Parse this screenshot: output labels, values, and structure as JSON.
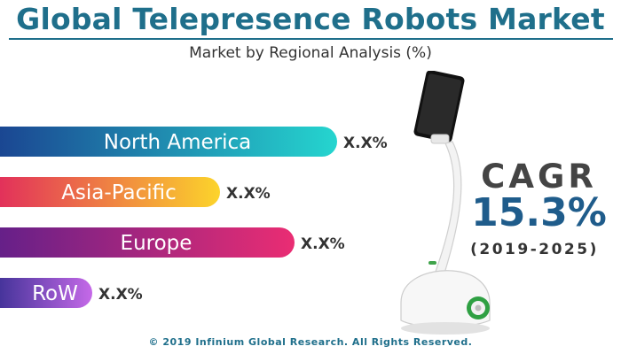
{
  "header": {
    "title": "Global Telepresence Robots Market",
    "subtitle": "Market by Regional Analysis (%)"
  },
  "chart_data": {
    "type": "bar",
    "orientation": "horizontal",
    "title": "Global Telepresence Robots Market",
    "subtitle": "Market by Regional Analysis (%)",
    "categories": [
      "North America",
      "Asia-Pacific",
      "Europe",
      "RoW"
    ],
    "value_labels": [
      "X.X%",
      "X.X%",
      "X.X%",
      "X.X%"
    ],
    "relative_lengths": [
      1.0,
      0.67,
      0.88,
      0.31
    ],
    "colors": [
      [
        "#1a3f8f",
        "#25d5cf"
      ],
      [
        "#e0245e",
        "#fcd42b"
      ],
      [
        "#5e1f8a",
        "#ea2d73"
      ],
      [
        "#2e2a8c",
        "#c569e8"
      ]
    ],
    "legend": "none",
    "grid": false
  },
  "cagr": {
    "label": "CAGR",
    "value": "15.3%",
    "period": "(2019-2025)",
    "color": "#1f5c8b"
  },
  "footer": {
    "copyright": "© 2019 Infinium Global Research. All Rights Reserved."
  },
  "accent_color": "#1f6f8b"
}
